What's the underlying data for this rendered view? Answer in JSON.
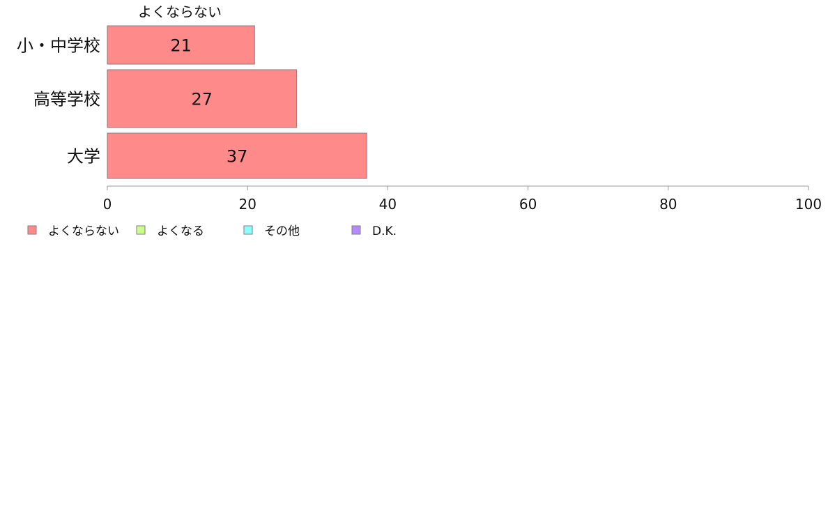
{
  "chart_data": {
    "type": "bar",
    "orientation": "horizontal",
    "stacked": true,
    "series_header": "よくならない",
    "categories": [
      "小・中学校",
      "高等学校",
      "大学"
    ],
    "series": [
      {
        "name": "よくならない",
        "color": "#ff8a8a",
        "values": [
          21,
          27,
          37
        ]
      },
      {
        "name": "よくなる",
        "color": "#c8ff8a",
        "values": [
          0,
          0,
          0
        ]
      },
      {
        "name": "その他",
        "color": "#8affff",
        "values": [
          0,
          0,
          0
        ]
      },
      {
        "name": "D.K.",
        "color": "#b48aff",
        "values": [
          0,
          0,
          0
        ]
      }
    ],
    "data_labels": [
      [
        "21",
        "27",
        "37"
      ]
    ],
    "xlim": [
      0,
      100
    ],
    "xticks": [
      0,
      20,
      40,
      60,
      80,
      100
    ],
    "xlabel": "",
    "ylabel": "",
    "title": "",
    "grid": false,
    "legend_position": "bottom-left"
  }
}
